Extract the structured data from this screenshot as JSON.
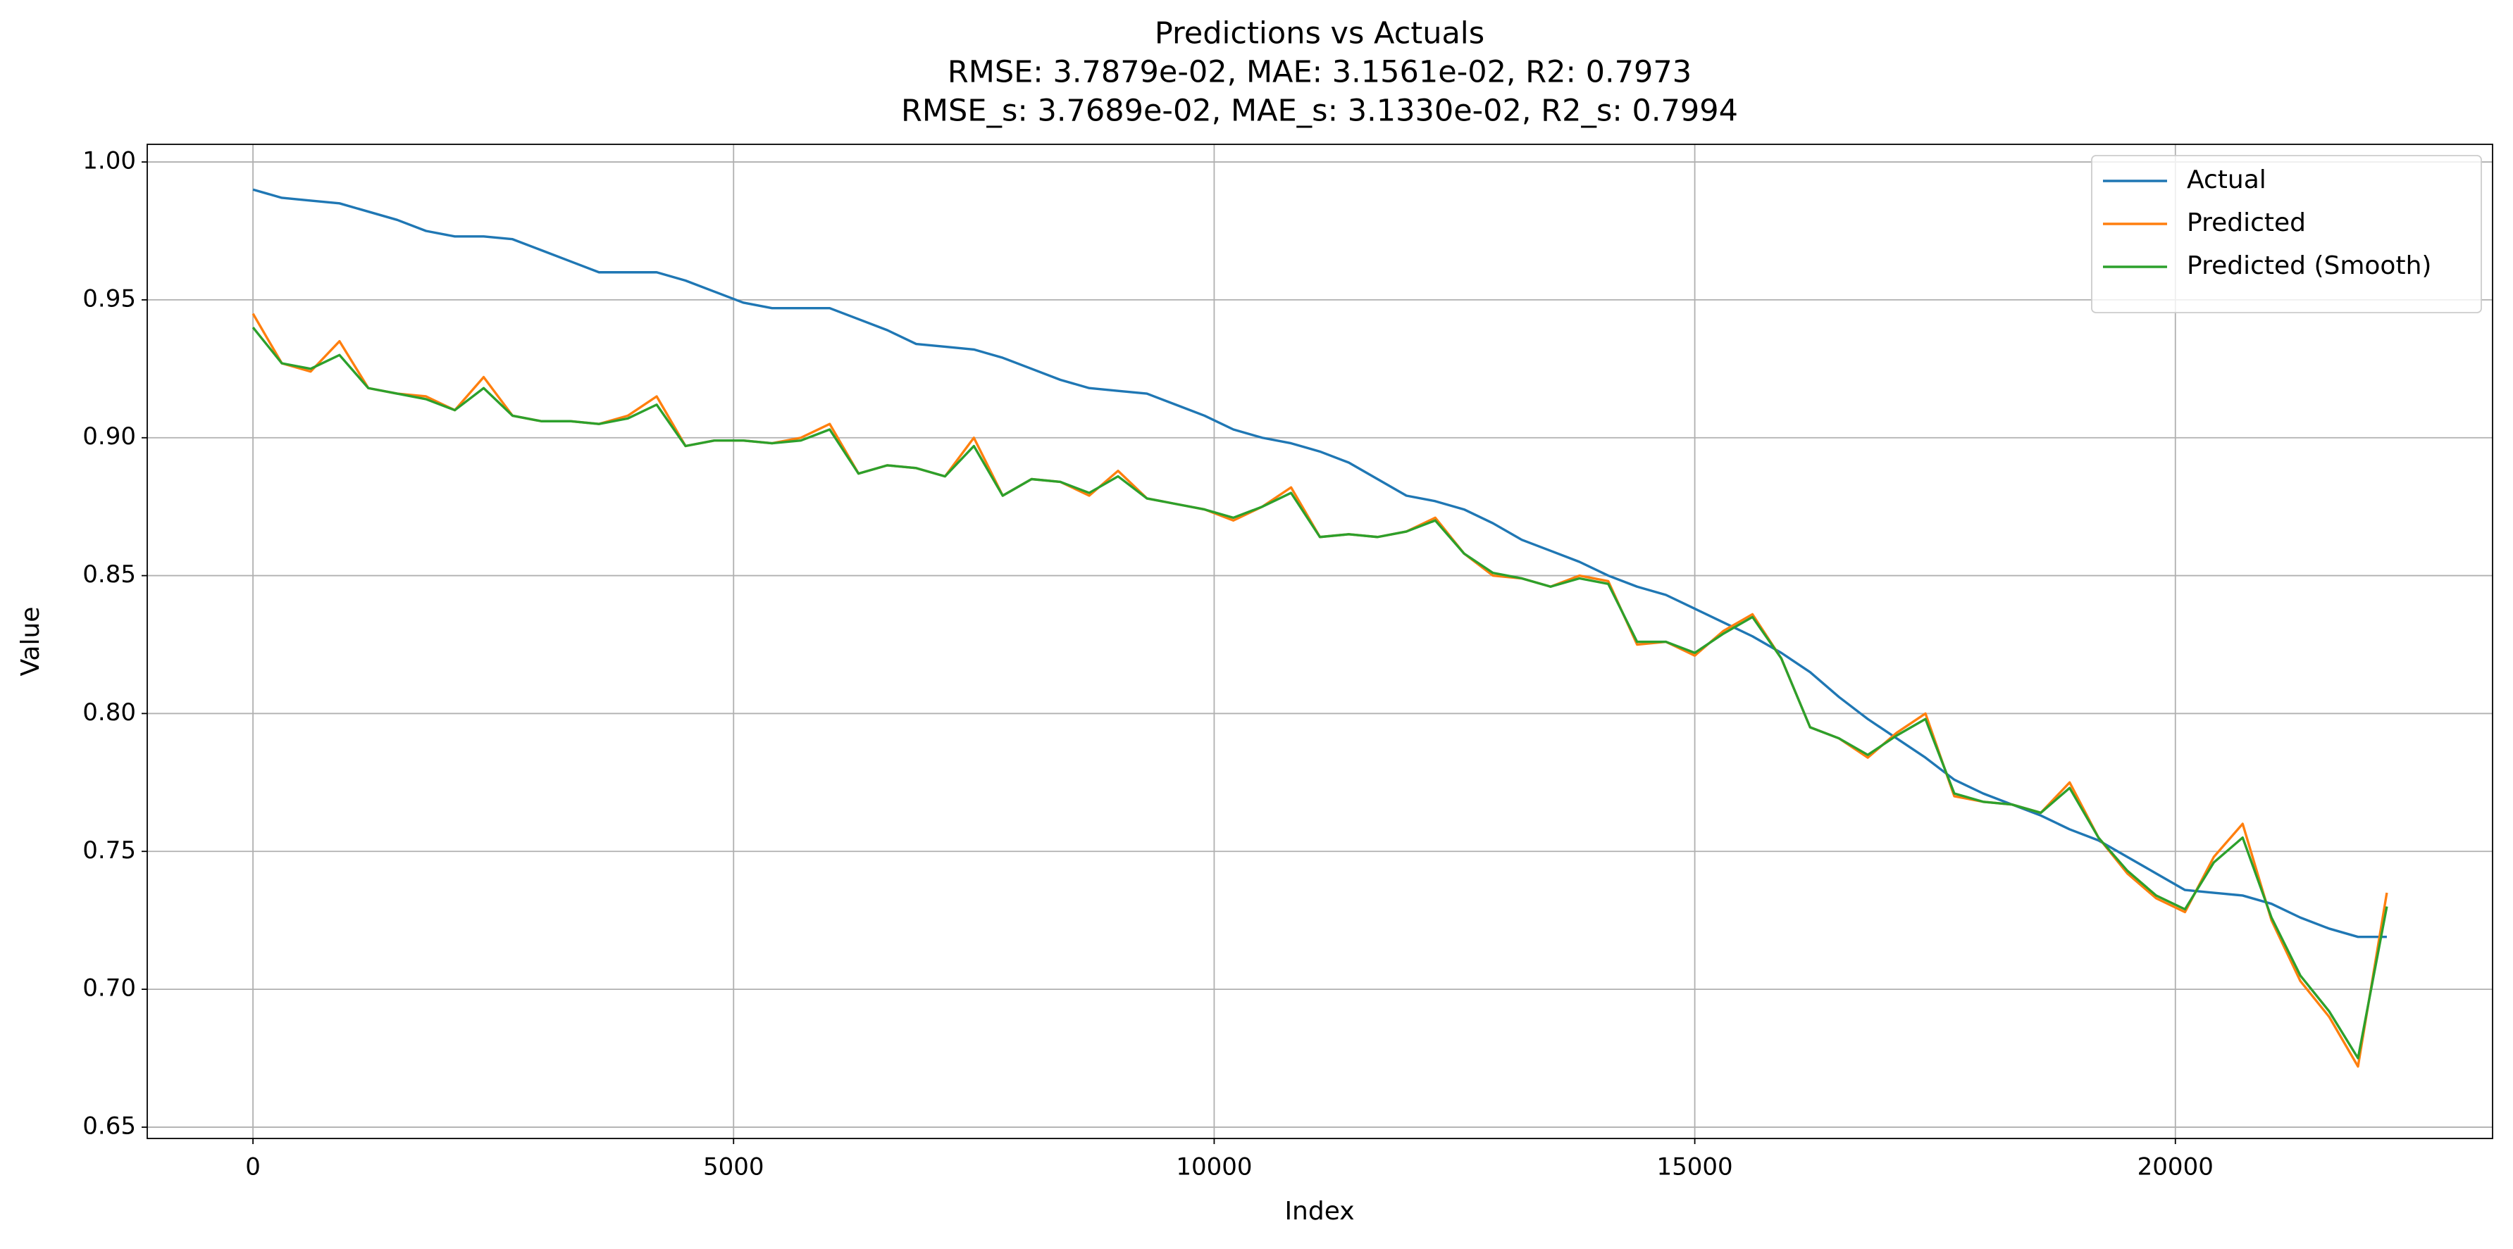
{
  "chart_data": {
    "type": "line",
    "title": "Predictions vs Actuals",
    "subtitle": [
      "RMSE: 3.7879e-02, MAE: 3.1561e-02, R2: 0.7973",
      "RMSE_s: 3.7689e-02, MAE_s: 3.1330e-02, R2_s: 0.7994"
    ],
    "x_label": "Index",
    "y_label": "Value",
    "x": [
      0,
      300,
      600,
      900,
      1200,
      1500,
      1800,
      2100,
      2400,
      2700,
      3000,
      3300,
      3600,
      3900,
      4200,
      4500,
      4800,
      5100,
      5400,
      5700,
      6000,
      6300,
      6600,
      6900,
      7200,
      7500,
      7800,
      8100,
      8400,
      8700,
      9000,
      9300,
      9600,
      9900,
      10200,
      10500,
      10800,
      11100,
      11400,
      11700,
      12000,
      12300,
      12600,
      12900,
      13200,
      13500,
      13800,
      14100,
      14400,
      14700,
      15000,
      15300,
      15600,
      15900,
      16200,
      16500,
      16800,
      17100,
      17400,
      17700,
      18000,
      18300,
      18600,
      18900,
      19200,
      19500,
      19800,
      20100,
      20400,
      20700,
      21000,
      21300,
      21600,
      21900,
      22200
    ],
    "series": [
      {
        "name": "Actual",
        "color": "#1f77b4",
        "values": [
          0.99,
          0.987,
          0.986,
          0.985,
          0.982,
          0.979,
          0.975,
          0.973,
          0.973,
          0.972,
          0.968,
          0.964,
          0.96,
          0.96,
          0.96,
          0.957,
          0.953,
          0.949,
          0.947,
          0.947,
          0.947,
          0.943,
          0.939,
          0.934,
          0.933,
          0.932,
          0.929,
          0.925,
          0.921,
          0.918,
          0.917,
          0.916,
          0.912,
          0.908,
          0.903,
          0.9,
          0.898,
          0.895,
          0.891,
          0.885,
          0.879,
          0.877,
          0.874,
          0.869,
          0.863,
          0.859,
          0.855,
          0.85,
          0.846,
          0.843,
          0.838,
          0.833,
          0.828,
          0.822,
          0.815,
          0.806,
          0.798,
          0.791,
          0.784,
          0.776,
          0.771,
          0.767,
          0.763,
          0.758,
          0.754,
          0.748,
          0.742,
          0.736,
          0.735,
          0.734,
          0.731,
          0.726,
          0.722,
          0.719,
          0.719
        ]
      },
      {
        "name": "Predicted",
        "color": "#ff7f0e",
        "values": [
          0.945,
          0.927,
          0.924,
          0.935,
          0.918,
          0.916,
          0.915,
          0.91,
          0.922,
          0.908,
          0.906,
          0.906,
          0.905,
          0.908,
          0.915,
          0.897,
          0.899,
          0.899,
          0.898,
          0.9,
          0.905,
          0.887,
          0.89,
          0.889,
          0.886,
          0.9,
          0.879,
          0.885,
          0.884,
          0.879,
          0.888,
          0.878,
          0.876,
          0.874,
          0.87,
          0.875,
          0.882,
          0.864,
          0.865,
          0.864,
          0.866,
          0.871,
          0.858,
          0.85,
          0.849,
          0.846,
          0.85,
          0.848,
          0.825,
          0.826,
          0.821,
          0.83,
          0.836,
          0.82,
          0.795,
          0.791,
          0.784,
          0.793,
          0.8,
          0.77,
          0.768,
          0.767,
          0.764,
          0.775,
          0.755,
          0.742,
          0.733,
          0.728,
          0.748,
          0.76,
          0.725,
          0.703,
          0.69,
          0.672,
          0.735
        ]
      },
      {
        "name": "Predicted (Smooth)",
        "color": "#2ca02c",
        "values": [
          0.94,
          0.927,
          0.925,
          0.93,
          0.918,
          0.916,
          0.914,
          0.91,
          0.918,
          0.908,
          0.906,
          0.906,
          0.905,
          0.907,
          0.912,
          0.897,
          0.899,
          0.899,
          0.898,
          0.899,
          0.903,
          0.887,
          0.89,
          0.889,
          0.886,
          0.897,
          0.879,
          0.885,
          0.884,
          0.88,
          0.886,
          0.878,
          0.876,
          0.874,
          0.871,
          0.875,
          0.88,
          0.864,
          0.865,
          0.864,
          0.866,
          0.87,
          0.858,
          0.851,
          0.849,
          0.846,
          0.849,
          0.847,
          0.826,
          0.826,
          0.822,
          0.829,
          0.835,
          0.82,
          0.795,
          0.791,
          0.785,
          0.792,
          0.798,
          0.771,
          0.768,
          0.767,
          0.764,
          0.773,
          0.755,
          0.743,
          0.734,
          0.729,
          0.746,
          0.755,
          0.726,
          0.705,
          0.692,
          0.675,
          0.73
        ]
      }
    ],
    "xlim": [
      -1100,
      23300
    ],
    "ylim": [
      0.6459,
      1.0064
    ],
    "xticks": [
      0,
      5000,
      10000,
      15000,
      20000
    ],
    "yticks": [
      0.65,
      {
        "value": 0.7,
        "label": "0.70"
      },
      0.75,
      {
        "value": 0.8,
        "label": "0.80"
      },
      0.85,
      {
        "value": 0.9,
        "label": "0.90"
      },
      0.95,
      {
        "value": 1.0,
        "label": "1.00"
      }
    ],
    "grid": true,
    "legend": "upper right"
  }
}
